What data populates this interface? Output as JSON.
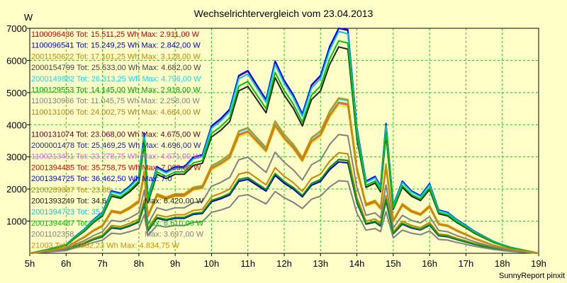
{
  "chart_data": {
    "type": "line",
    "title": "Wechselrichtervergleich vom 23.04.2013",
    "ylabel": "W",
    "credit": "SunnyReport pinxit",
    "x_ticks": [
      "5h",
      "6h",
      "7h",
      "8h",
      "9h",
      "10h",
      "11h",
      "12h",
      "13h",
      "14h",
      "15h",
      "16h",
      "17h",
      "18h",
      "19h"
    ],
    "y_ticks": [
      "1000",
      "2000",
      "3000",
      "4000",
      "5000",
      "6000",
      "7000"
    ],
    "xlim": [
      5,
      19
    ],
    "ylim": [
      0,
      7000
    ],
    "grid": true,
    "x": [
      5,
      5.5,
      6,
      6.25,
      6.5,
      6.75,
      7,
      7.25,
      7.5,
      7.75,
      8,
      8.15,
      8.25,
      8.5,
      8.75,
      9,
      9.25,
      9.5,
      9.75,
      10,
      10.25,
      10.5,
      10.75,
      11,
      11.25,
      11.5,
      11.75,
      12,
      12.25,
      12.5,
      12.75,
      13,
      13.25,
      13.5,
      13.75,
      14,
      14.25,
      14.5,
      14.65,
      14.8,
      15,
      15.25,
      15.5,
      15.75,
      16,
      16.25,
      16.5,
      16.75,
      17,
      17.25,
      17.5,
      17.75,
      18,
      18.25,
      18.5,
      18.75,
      19
    ],
    "series": [
      {
        "name": "1100096436 Tot: 15.511,25 Wh Max: 2.911,00 W",
        "color": "#c00000",
        "peak": 2911
      },
      {
        "name": "1100096541 Tot: 15.249,25 Wh Max: 2.842,00 W",
        "color": "#0000c8",
        "peak": 2842
      },
      {
        "name": "2001150622 Tot: 17.101,25 Wh Max: 3.128,00 W",
        "color": "#d08000",
        "peak": 3128
      },
      {
        "name": "2000154799 Tot: 25.533,00 Wh Max: 4.682,00 W",
        "color": "#404040",
        "peak": 4682
      },
      {
        "name": "2000149882 Tot: 26.313,25 Wh Max: 4.796,00 W",
        "color": "#00e0ff",
        "peak": 4796
      },
      {
        "name": "1100129553 Tot: 14.145,00 Wh Max: 2.918,00 W",
        "color": "#00a000",
        "peak": 2918
      },
      {
        "name": "1100130966 Tot: 11.045,75 Wh Max: 2.258,00 W",
        "color": "#808080",
        "peak": 2258
      },
      {
        "name": "1100131006 Tot: 24.002,75 Wh Max: 4.664,00 W",
        "color": "#b08020",
        "peak": 4664
      },
      {
        "name": "",
        "color": "#f0f000",
        "peak": 4600
      },
      {
        "name": "1100131074 Tot: 23.068,00 Wh Max: 4.675,00 W",
        "color": "#600020",
        "peak": 4675
      },
      {
        "name": "2000001478 Tot: 25.469,25 Wh Max: 4.696,00 W",
        "color": "#2020a0",
        "peak": 4696
      },
      {
        "name": "1100213451 Tot: 23.278,75 Wh Max: 4.671,00 W",
        "color": "#e060e0",
        "peak": 4671
      },
      {
        "name": "2001394485 Tot: 35.758,75 Wh Max: 7.003,00 W",
        "color": "#e00000",
        "peak": 7003
      },
      {
        "name": "2001394725 Tot: 36.462,50 Wh Max: 7.0",
        "color": "#0000ff",
        "peak": 7030
      },
      {
        "name": "2100289887 Tot: 23.88",
        "color": "#d08000",
        "peak": 4700
      },
      {
        "name": "2001393249 Tot: 34.6",
        "color": "#202020",
        "peak": 6420
      },
      {
        "name": "2001394723 Tot: 35.",
        "color": "#00c8e0",
        "peak": 6900
      },
      {
        "name": "2001394487 Tot:",
        "color": "#00c000",
        "peak": 6610
      },
      {
        "name": "2001102358",
        "color": "#808080",
        "peak": 3697
      },
      {
        "name": "21003 Tot: 23.062,23 Wh Max: 4.834,75 W",
        "color": "#c89000",
        "peak": 4834
      }
    ],
    "visible_fragments": [
      "Max: 6.420,00 W",
      "Max: 6.610,00 W",
      "Max: 3.697,00 W"
    ],
    "profile": [
      0,
      80,
      180,
      350,
      500,
      700,
      850,
      1300,
      1250,
      1400,
      1600,
      2500,
      1150,
      1800,
      1700,
      1800,
      1800,
      2000,
      2050,
      2650,
      2800,
      3000,
      3700,
      3800,
      3500,
      3200,
      4000,
      3600,
      3300,
      2900,
      3500,
      3700,
      4300,
      4700,
      4650,
      2600,
      1500,
      1600,
      1400,
      2700,
      1000,
      1500,
      1300,
      1200,
      1450,
      900,
      850,
      700,
      580,
      450,
      350,
      250,
      180,
      120,
      80,
      40,
      0
    ]
  }
}
